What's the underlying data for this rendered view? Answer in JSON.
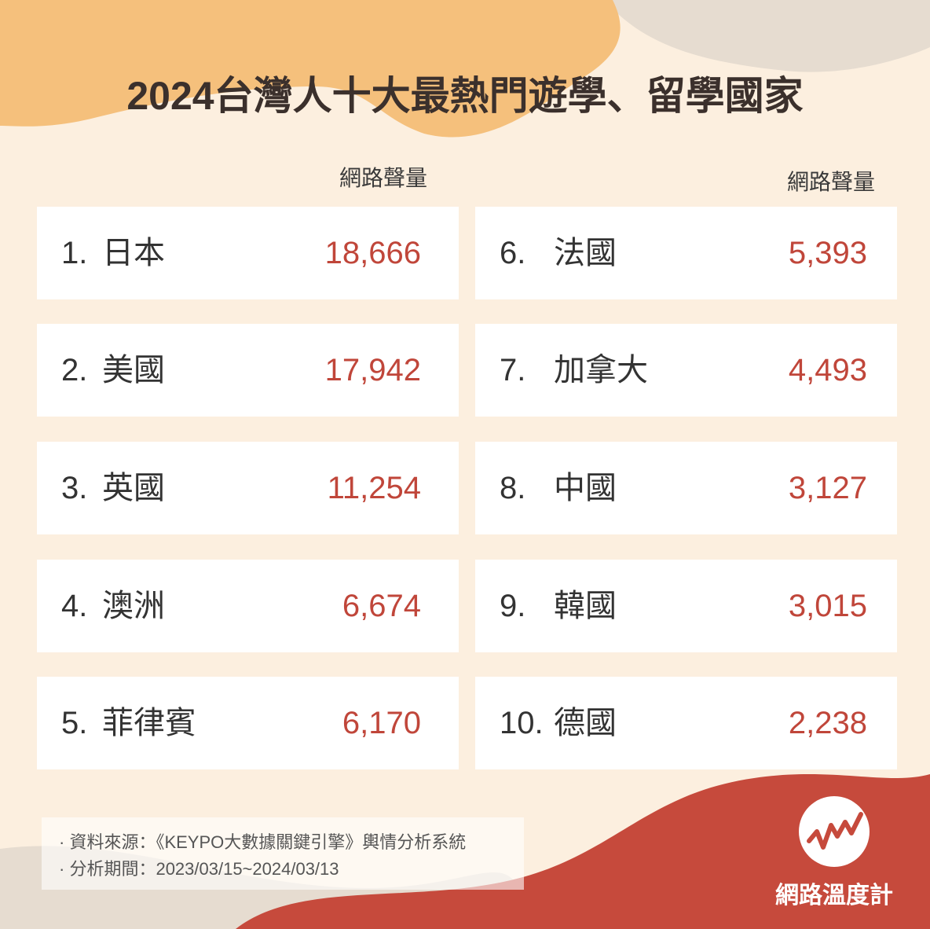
{
  "title": "2024台灣人十大最熱門遊學、留學國家",
  "column_headers": [
    "網路聲量",
    "網路聲量"
  ],
  "rankings": [
    {
      "rank": "1.",
      "name": "日本",
      "value": "18,666"
    },
    {
      "rank": "2.",
      "name": "美國",
      "value": "17,942"
    },
    {
      "rank": "3.",
      "name": "英國",
      "value": "11,254"
    },
    {
      "rank": "4.",
      "name": "澳洲",
      "value": "6,674"
    },
    {
      "rank": "5.",
      "name": "菲律賓",
      "value": "6,170"
    },
    {
      "rank": "6.",
      "name": "法國",
      "value": "5,393"
    },
    {
      "rank": "7.",
      "name": "加拿大",
      "value": "4,493"
    },
    {
      "rank": "8.",
      "name": "中國",
      "value": "3,127"
    },
    {
      "rank": "9.",
      "name": "韓國",
      "value": "3,015"
    },
    {
      "rank": "10.",
      "name": "德國",
      "value": "2,238"
    }
  ],
  "footnotes": [
    "資料來源：《KEYPO大數據關鍵引擎》輿情分析系統",
    "分析期間：2023/03/15~2024/03/13"
  ],
  "brand": "網路溫度計"
}
